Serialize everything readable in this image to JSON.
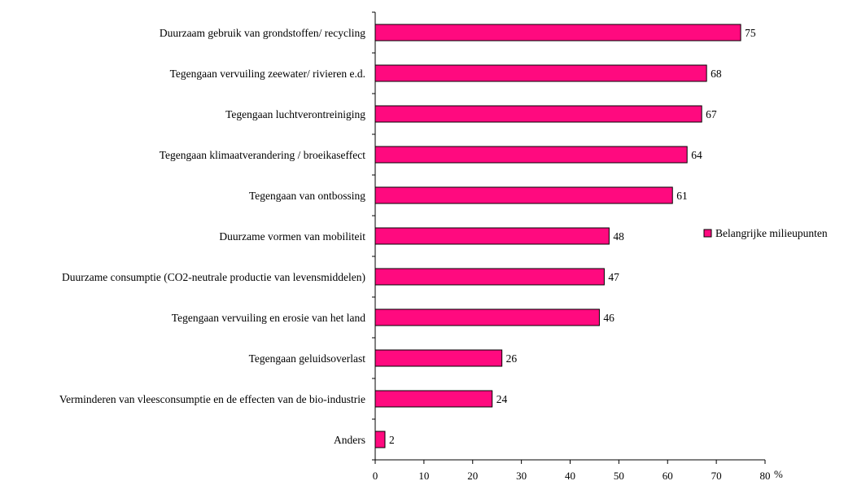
{
  "chart_data": {
    "type": "bar",
    "orientation": "horizontal",
    "categories": [
      "Duurzaam gebruik van grondstoffen/ recycling",
      "Tegengaan vervuiling zeewater/ rivieren e.d.",
      "Tegengaan luchtverontreiniging",
      "Tegengaan klimaatverandering / broeikaseffect",
      "Tegengaan van ontbossing",
      "Duurzame vormen van mobiliteit",
      "Duurzame consumptie (CO2-neutrale productie van levensmiddelen)",
      "Tegengaan vervuiling en erosie van het land",
      "Tegengaan geluidsoverlast",
      "Verminderen van vleesconsumptie en de effecten van de bio-industrie",
      "Anders"
    ],
    "series": [
      {
        "name": "Belangrijke milieupunten",
        "values": [
          75,
          68,
          67,
          64,
          61,
          48,
          47,
          46,
          26,
          24,
          2
        ],
        "color": "#FF0A7F"
      }
    ],
    "xlabel": "%",
    "xlim": [
      0,
      80
    ],
    "xticks": [
      0,
      10,
      20,
      30,
      40,
      50,
      60,
      70,
      80
    ],
    "data_labels": true,
    "legend": "right",
    "grid": false
  }
}
